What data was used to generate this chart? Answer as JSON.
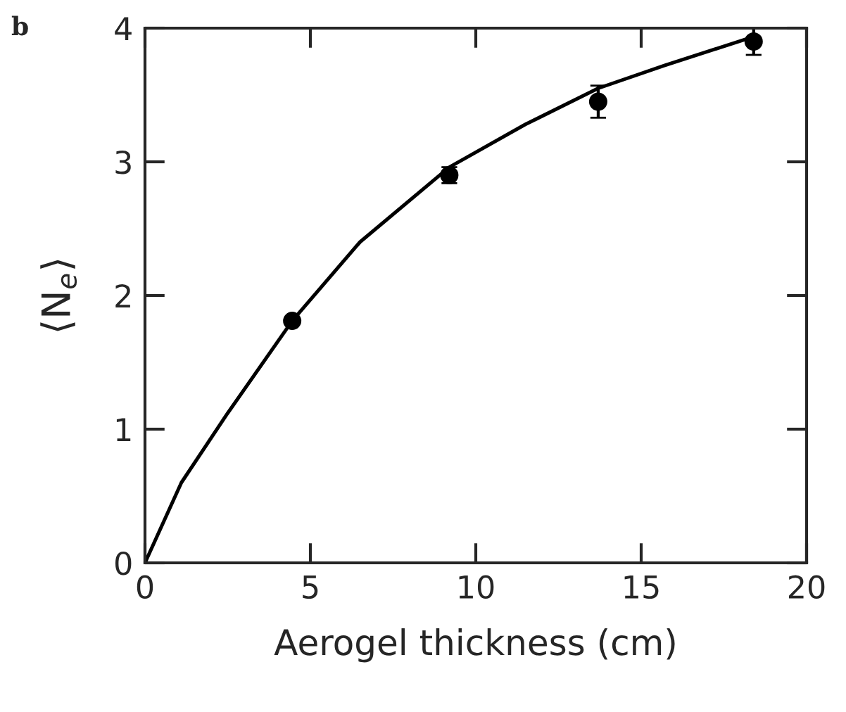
{
  "chart_data": {
    "type": "scatter",
    "xlabel": "Aerogel thickness (cm)",
    "ylabel": "⟨N$_{e}$⟩",
    "annotations": [
      "b"
    ],
    "series": [
      {
        "color": "#000000",
        "marker": "circle",
        "x": [
          4.45,
          9.2,
          13.7,
          18.4
        ],
        "values": [
          1.81,
          2.9,
          3.45,
          3.9
        ],
        "errors": [
          null,
          0.06,
          0.12,
          0.1
        ]
      },
      {
        "type": "line",
        "color": "#000000",
        "marker": "none",
        "line_style": "solid",
        "x": [
          0,
          1.1,
          2.5,
          4.45,
          6.5,
          9.2,
          11.5,
          13.7,
          15.7,
          18.45
        ],
        "values": [
          0,
          0.6,
          1.12,
          1.81,
          2.4,
          2.96,
          3.28,
          3.55,
          3.72,
          3.94
        ]
      }
    ],
    "xlim": [
      0,
      20
    ],
    "ylim": [
      0,
      4
    ],
    "xticks": [
      0,
      5,
      10,
      15,
      20
    ],
    "yticks": [
      0,
      1,
      2,
      3,
      4
    ],
    "grid": false,
    "legend": false
  }
}
